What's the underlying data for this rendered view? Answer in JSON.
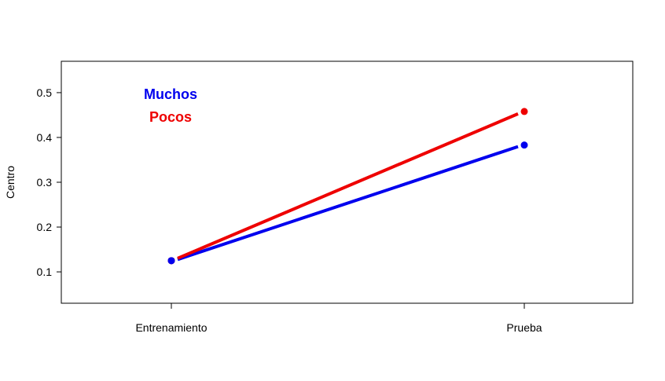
{
  "chart_data": {
    "type": "line",
    "categories": [
      "Entrenamiento",
      "Prueba"
    ],
    "series": [
      {
        "name": "Muchos",
        "values": [
          0.125,
          0.383
        ],
        "color": "#0000ee"
      },
      {
        "name": "Pocos",
        "values": [
          0.125,
          0.458
        ],
        "color": "#ee0000"
      }
    ],
    "xlabel": "",
    "ylabel": "Centro",
    "ylim": [
      0.03,
      0.57
    ],
    "yticks": [
      "0.1",
      "0.2",
      "0.3",
      "0.4",
      "0.5"
    ],
    "legend_position": "top-left",
    "grid": false
  }
}
